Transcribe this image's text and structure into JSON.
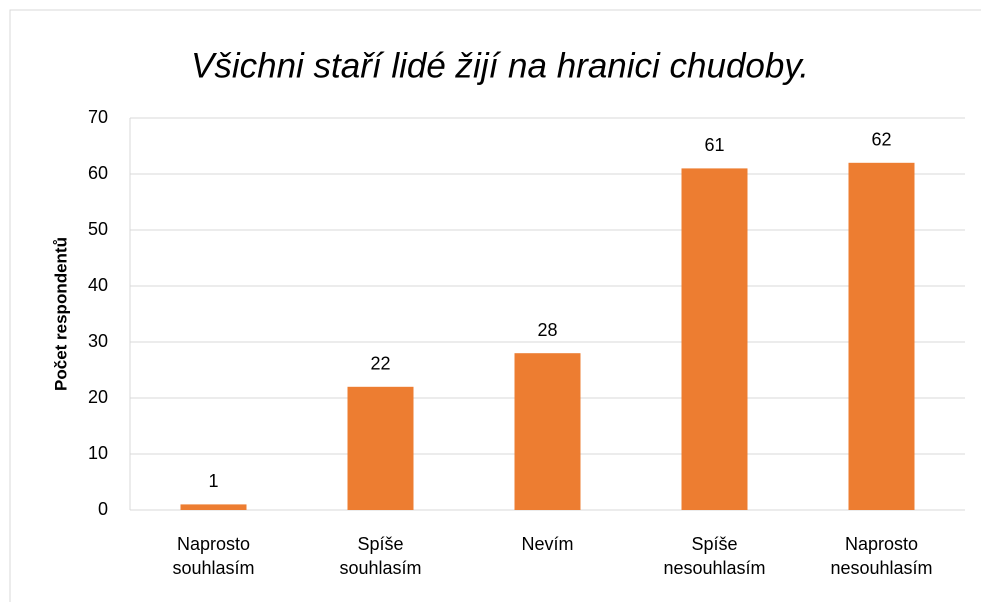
{
  "chart_data": {
    "type": "bar",
    "title": "Všichni staří lidé žijí na hranici chudoby.",
    "y_label": "Počet respondentů",
    "categories": [
      "Naprosto souhlasím",
      "Spíše souhlasím",
      "Nevím",
      "Spíše nesouhlasím",
      "Naprosto nesouhlasím"
    ],
    "values": [
      1,
      22,
      28,
      61,
      62
    ],
    "color": "#ed7d31",
    "ylim": [
      0,
      70
    ],
    "yticks": [
      0,
      10,
      20,
      30,
      40,
      50,
      60,
      70
    ],
    "grid": true
  }
}
